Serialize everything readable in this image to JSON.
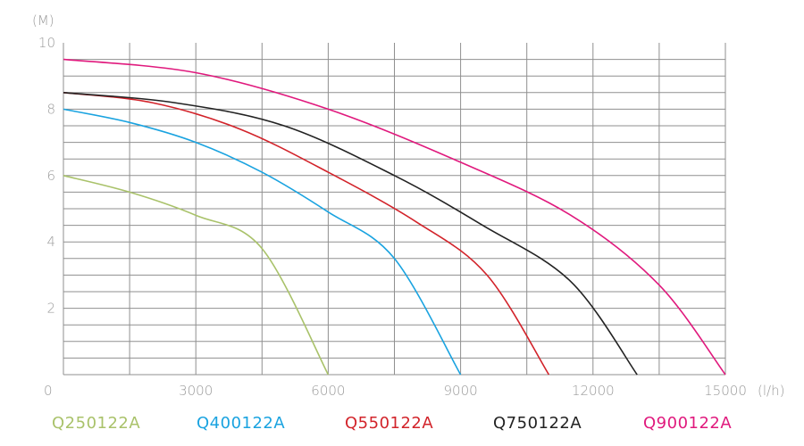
{
  "chart_data": {
    "type": "line",
    "title": "",
    "ylabel": "(M)",
    "xlabel": "(l/h)",
    "xlim": [
      0,
      15000
    ],
    "ylim": [
      0,
      10
    ],
    "grid": true,
    "legend_position": "bottom",
    "x_tick_labels": [
      "0",
      "3000",
      "6000",
      "9000",
      "12000",
      "15000"
    ],
    "y_tick_labels": [
      "2",
      "4",
      "6",
      "8",
      "10"
    ],
    "series": [
      {
        "name": "Q250122A",
        "color": "#a9c26a",
        "points": [
          [
            0,
            6.0
          ],
          [
            1500,
            5.5
          ],
          [
            3000,
            4.8
          ],
          [
            4500,
            3.8
          ],
          [
            6000,
            0.0
          ]
        ]
      },
      {
        "name": "Q400122A",
        "color": "#1aa3e0",
        "points": [
          [
            0,
            8.0
          ],
          [
            1500,
            7.6
          ],
          [
            3000,
            7.0
          ],
          [
            4500,
            6.1
          ],
          [
            6000,
            4.9
          ],
          [
            7500,
            3.5
          ],
          [
            9000,
            0.0
          ]
        ]
      },
      {
        "name": "Q550122A",
        "color": "#d2232a",
        "points": [
          [
            0,
            8.5
          ],
          [
            2000,
            8.2
          ],
          [
            4000,
            7.4
          ],
          [
            6000,
            6.1
          ],
          [
            8000,
            4.6
          ],
          [
            9600,
            3.0
          ],
          [
            11000,
            0.0
          ]
        ]
      },
      {
        "name": "Q750122A",
        "color": "#222222",
        "points": [
          [
            0,
            8.5
          ],
          [
            2500,
            8.2
          ],
          [
            5000,
            7.5
          ],
          [
            7500,
            6.0
          ],
          [
            9500,
            4.5
          ],
          [
            11500,
            2.8
          ],
          [
            13000,
            0.0
          ]
        ]
      },
      {
        "name": "Q900122A",
        "color": "#e0197d",
        "points": [
          [
            0,
            9.5
          ],
          [
            3000,
            9.1
          ],
          [
            6000,
            8.0
          ],
          [
            9000,
            6.4
          ],
          [
            11500,
            4.8
          ],
          [
            13500,
            2.7
          ],
          [
            15000,
            0.0
          ]
        ]
      }
    ]
  }
}
